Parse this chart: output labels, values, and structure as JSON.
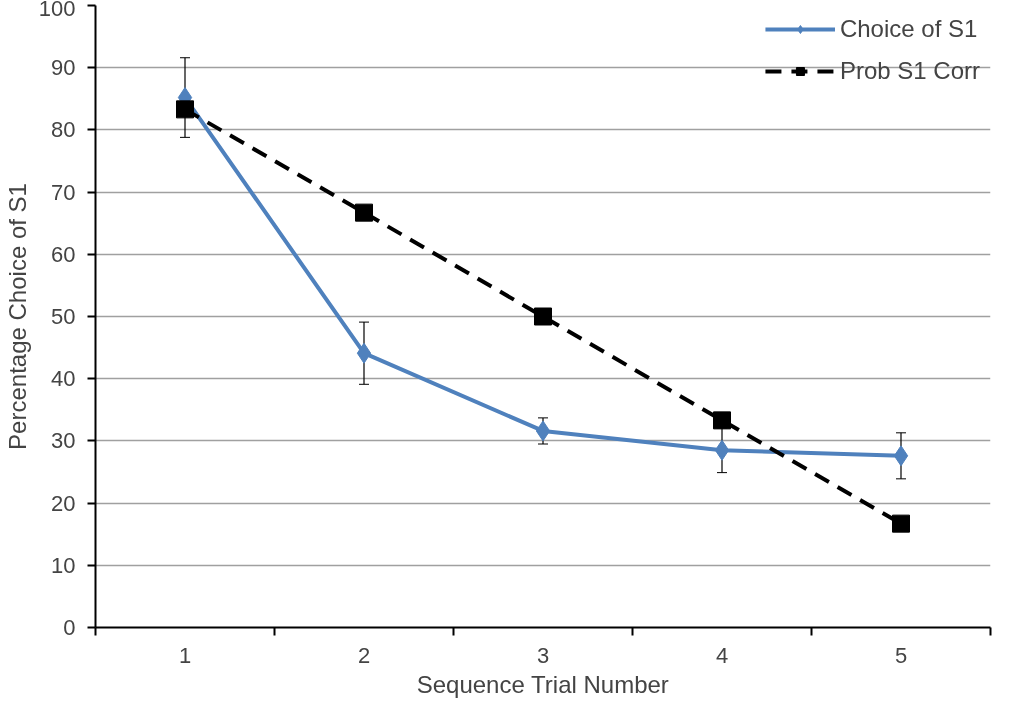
{
  "chart_data": {
    "type": "line",
    "xlabel": "Sequence Trial Number",
    "ylabel": "Percentage Choice of S1",
    "categories": [
      "1",
      "2",
      "3",
      "4",
      "5"
    ],
    "series": [
      {
        "name": "Choice of S1",
        "color": "#4f81bd",
        "values": [
          85.2,
          44.1,
          31.6,
          28.5,
          27.6
        ],
        "errors": [
          6.4,
          5,
          2.1,
          3.6,
          3.7
        ],
        "marker": "diamond",
        "line_style": "solid"
      },
      {
        "name": "Prob S1 Corr",
        "color": "#000000",
        "values": [
          83.3,
          66.7,
          50,
          33.3,
          16.7
        ],
        "marker": "square",
        "line_style": "dashed"
      }
    ],
    "ylim": [
      0,
      100
    ],
    "yticks": [
      0,
      10,
      20,
      30,
      40,
      50,
      60,
      70,
      80,
      90,
      100
    ],
    "grid": "y",
    "legend": "top right"
  }
}
